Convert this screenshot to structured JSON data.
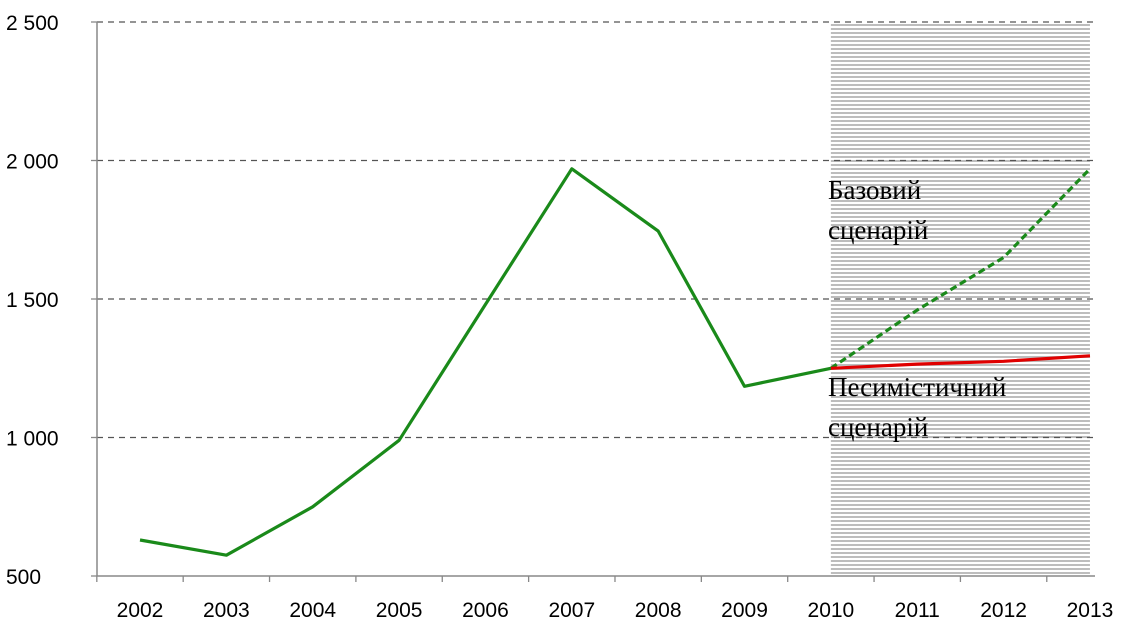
{
  "chart_data": {
    "type": "line",
    "x": [
      "2002",
      "2003",
      "2004",
      "2005",
      "2006",
      "2007",
      "2008",
      "2009",
      "2010",
      "2011",
      "2012",
      "2013"
    ],
    "ylim": [
      500,
      2500
    ],
    "yticks": [
      500,
      1000,
      1500,
      2000,
      2500
    ],
    "ytick_labels": [
      "500",
      "1 000",
      "1 500",
      "2 000",
      "2 500"
    ],
    "grid": "dashed horizontal at 1 000, 1 500, 2 000, 2 500",
    "forecast_region": {
      "from": "2010",
      "to": "2013",
      "style": "grey horizontal stripes"
    },
    "series": [
      {
        "style": "solid",
        "color": "#1a8a1a",
        "points": [
          {
            "x": "2002",
            "y": 630
          },
          {
            "x": "2003",
            "y": 575
          },
          {
            "x": "2004",
            "y": 750
          },
          {
            "x": "2005",
            "y": 990
          },
          {
            "x": "2006",
            "y": 1480
          },
          {
            "x": "2007",
            "y": 1970
          },
          {
            "x": "2008",
            "y": 1745
          },
          {
            "x": "2009",
            "y": 1185
          },
          {
            "x": "2010",
            "y": 1250
          }
        ]
      },
      {
        "name": "Базовий сценарій",
        "style": "dashed",
        "color": "#1a8a1a",
        "points": [
          {
            "x": "2010",
            "y": 1250
          },
          {
            "x": "2011",
            "y": 1460
          },
          {
            "x": "2012",
            "y": 1650
          },
          {
            "x": "2013",
            "y": 1970
          }
        ]
      },
      {
        "name": "Песимістичний сценарій",
        "style": "solid",
        "color": "#e00000",
        "points": [
          {
            "x": "2010",
            "y": 1250
          },
          {
            "x": "2011",
            "y": 1265
          },
          {
            "x": "2012",
            "y": 1275
          },
          {
            "x": "2013",
            "y": 1295
          }
        ]
      }
    ],
    "annotations": {
      "base": [
        "Базовий",
        "сценарій"
      ],
      "pessimistic": [
        "Песимістичний",
        "сценарій"
      ]
    }
  }
}
